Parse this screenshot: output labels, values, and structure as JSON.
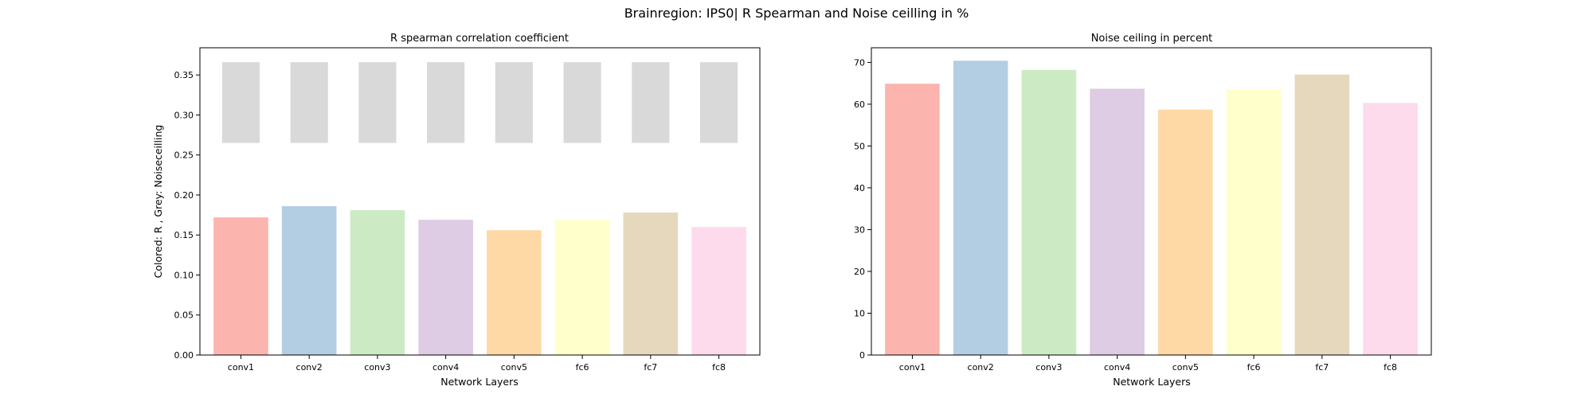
{
  "figure": {
    "suptitle": "Brainregion: IPS0| R Spearman and Noise ceilling in %"
  },
  "colors": {
    "bars": [
      "#fbb4ae",
      "#b3cde3",
      "#ccebc5",
      "#decbe4",
      "#fed9a6",
      "#ffffcc",
      "#e5d8bd",
      "#fddaec"
    ],
    "noiseceiling": "#d9d9d9",
    "axes": "#000000"
  },
  "chart_data": [
    {
      "type": "bar",
      "title": "R spearman correlation coefficient",
      "xlabel": "Network Layers",
      "ylabel": "Colored: R , Grey: Noiseceilling",
      "categories": [
        "conv1",
        "conv2",
        "conv3",
        "conv4",
        "conv5",
        "fc6",
        "fc7",
        "fc8"
      ],
      "series": [
        {
          "values": [
            0.172,
            0.186,
            0.181,
            0.169,
            0.156,
            0.169,
            0.178,
            0.16
          ]
        }
      ],
      "noise_ceiling_range": [
        [
          0.265,
          0.366
        ],
        [
          0.265,
          0.366
        ],
        [
          0.265,
          0.366
        ],
        [
          0.265,
          0.366
        ],
        [
          0.265,
          0.366
        ],
        [
          0.265,
          0.366
        ],
        [
          0.265,
          0.366
        ],
        [
          0.265,
          0.366
        ]
      ],
      "ylim": [
        0,
        0.384
      ],
      "yticks": [
        0.0,
        0.05,
        0.1,
        0.15,
        0.2,
        0.25,
        0.3,
        0.35
      ],
      "ytick_labels": [
        "0.00",
        "0.05",
        "0.10",
        "0.15",
        "0.20",
        "0.25",
        "0.30",
        "0.35"
      ],
      "grid": false,
      "legend": "none"
    },
    {
      "type": "bar",
      "title": "Noise ceiling in percent",
      "xlabel": "Network Layers",
      "ylabel": "",
      "categories": [
        "conv1",
        "conv2",
        "conv3",
        "conv4",
        "conv5",
        "fc6",
        "fc7",
        "fc8"
      ],
      "series": [
        {
          "values": [
            64.9,
            70.4,
            68.2,
            63.7,
            58.7,
            63.5,
            67.1,
            60.3
          ]
        }
      ],
      "ylim": [
        0,
        73.5
      ],
      "yticks": [
        0,
        10,
        20,
        30,
        40,
        50,
        60,
        70
      ],
      "ytick_labels": [
        "0",
        "10",
        "20",
        "30",
        "40",
        "50",
        "60",
        "70"
      ],
      "grid": false,
      "legend": "none"
    }
  ]
}
